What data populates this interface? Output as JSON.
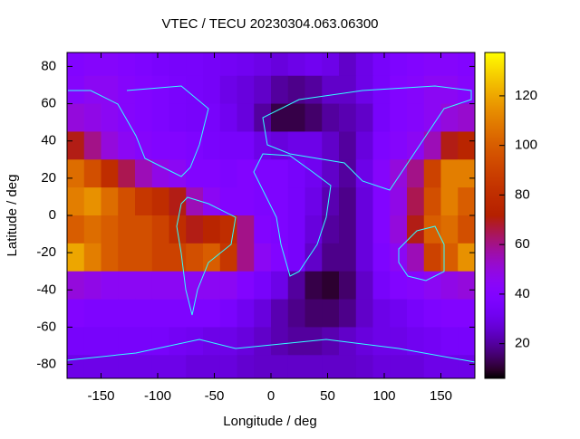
{
  "chart_data": {
    "type": "heatmap",
    "title": "VTEC / TECU 20230304.063.06300",
    "x_label": "Longitude / deg",
    "y_label": "Latitude / deg",
    "x": [
      -172.5,
      -157.5,
      -142.5,
      -127.5,
      -112.5,
      -97.5,
      -82.5,
      -67.5,
      -52.5,
      -37.5,
      -22.5,
      -7.5,
      7.5,
      22.5,
      37.5,
      52.5,
      67.5,
      82.5,
      97.5,
      112.5,
      127.5,
      142.5,
      157.5,
      172.5
    ],
    "y": [
      82.5,
      67.5,
      52.5,
      37.5,
      22.5,
      7.5,
      -7.5,
      -22.5,
      -37.5,
      -52.5,
      -67.5,
      -82.5
    ],
    "z": [
      [
        40,
        42,
        42,
        40,
        38,
        36,
        35,
        35,
        34,
        33,
        32,
        30,
        28,
        30,
        32,
        30,
        25,
        30,
        35,
        38,
        40,
        42,
        42,
        40
      ],
      [
        42,
        45,
        45,
        42,
        40,
        38,
        36,
        35,
        34,
        30,
        28,
        25,
        20,
        18,
        20,
        25,
        25,
        30,
        35,
        40,
        42,
        45,
        45,
        42
      ],
      [
        50,
        48,
        45,
        42,
        40,
        38,
        36,
        35,
        35,
        32,
        28,
        20,
        12,
        12,
        15,
        20,
        22,
        25,
        35,
        40,
        42,
        45,
        50,
        52
      ],
      [
        70,
        60,
        50,
        45,
        42,
        40,
        40,
        38,
        36,
        35,
        35,
        30,
        28,
        30,
        30,
        25,
        20,
        28,
        38,
        42,
        45,
        55,
        70,
        75
      ],
      [
        105,
        95,
        80,
        65,
        55,
        48,
        45,
        40,
        40,
        38,
        40,
        38,
        38,
        35,
        32,
        25,
        20,
        30,
        42,
        50,
        60,
        90,
        110,
        110
      ],
      [
        110,
        115,
        105,
        95,
        85,
        80,
        70,
        55,
        45,
        40,
        40,
        38,
        38,
        35,
        30,
        22,
        18,
        28,
        40,
        48,
        65,
        95,
        110,
        100
      ],
      [
        100,
        105,
        100,
        95,
        95,
        90,
        80,
        70,
        75,
        80,
        60,
        40,
        38,
        35,
        28,
        20,
        18,
        28,
        40,
        50,
        70,
        100,
        105,
        95
      ],
      [
        120,
        110,
        100,
        95,
        95,
        90,
        90,
        95,
        100,
        85,
        60,
        45,
        40,
        35,
        25,
        18,
        18,
        28,
        38,
        45,
        55,
        90,
        100,
        115
      ],
      [
        50,
        48,
        45,
        45,
        45,
        45,
        45,
        45,
        45,
        45,
        40,
        35,
        30,
        20,
        12,
        10,
        15,
        25,
        35,
        40,
        42,
        45,
        48,
        50
      ],
      [
        40,
        38,
        38,
        38,
        38,
        38,
        38,
        38,
        38,
        36,
        32,
        28,
        22,
        18,
        15,
        15,
        18,
        25,
        30,
        32,
        35,
        38,
        40,
        40
      ],
      [
        35,
        35,
        35,
        35,
        35,
        35,
        33,
        32,
        30,
        30,
        28,
        25,
        22,
        20,
        20,
        22,
        25,
        28,
        30,
        30,
        32,
        33,
        35,
        35
      ],
      [
        30,
        30,
        30,
        30,
        30,
        30,
        30,
        28,
        28,
        28,
        26,
        25,
        25,
        25,
        25,
        25,
        25,
        26,
        28,
        28,
        28,
        30,
        30,
        30
      ]
    ],
    "xlim": [
      -180,
      180
    ],
    "xticks": [
      -150,
      -100,
      -50,
      0,
      50,
      100,
      150
    ],
    "ylim": [
      -87.5,
      87.5
    ],
    "yticks": [
      -80,
      -60,
      -40,
      -20,
      0,
      20,
      40,
      60,
      80
    ],
    "cblim": [
      6,
      137.5
    ],
    "cbticks": [
      20,
      40,
      60,
      80,
      100,
      120
    ]
  }
}
